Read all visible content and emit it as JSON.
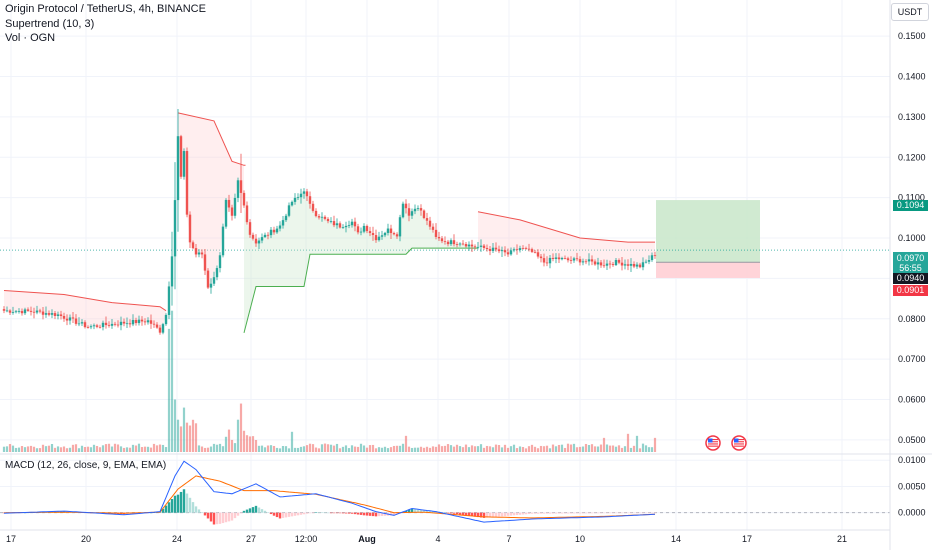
{
  "header": {
    "title": "Origin Protocol / TetherUS, 4h, BINANCE",
    "indicator_supertrend": "Supertrend (10, 3)",
    "indicator_volume": "Vol · OGN",
    "indicator_macd": "MACD (12, 26, close, 9, EMA, EMA)",
    "currency": "USDT"
  },
  "price_tags": {
    "target": "0.1094",
    "current": "0.0970",
    "countdown": "56:55",
    "entry": "0.0940",
    "stop": "0.0901"
  },
  "colors": {
    "up": "#26a69a",
    "down": "#ef5350",
    "supertrend_up": "#4caf50",
    "supertrend_down": "#ef5350",
    "macd_line": "#2962ff",
    "signal_line": "#ff6d00",
    "target_zone": "#c8e6c9",
    "stop_zone": "#ffcdd2"
  },
  "events": [
    "us-flag-icon",
    "us-flag-icon"
  ],
  "chart_data": {
    "type": "candlestick",
    "price_axis": {
      "ticks": [
        "0.1500",
        "0.1400",
        "0.1300",
        "0.1200",
        "0.1100",
        "0.1000",
        "0.0900",
        "0.0800",
        "0.0700",
        "0.0600",
        "0.0500"
      ],
      "range": [
        0.047,
        0.154
      ]
    },
    "time_axis": {
      "labels": [
        "17",
        "20",
        "24",
        "27",
        "12:00",
        "Aug",
        "4",
        "7",
        "10",
        "14",
        "17",
        "21"
      ]
    },
    "macd_axis": {
      "ticks": [
        "0.0100",
        "0.0050",
        "0.0000"
      ],
      "range": [
        -0.0033,
        0.0108
      ]
    },
    "anchors": [
      [
        0,
        0.082
      ],
      [
        10,
        0.0818
      ],
      [
        18,
        0.081
      ],
      [
        28,
        0.078
      ],
      [
        40,
        0.079
      ],
      [
        48,
        0.0795
      ],
      [
        52,
        0.077
      ],
      [
        54,
        0.081
      ],
      [
        56,
        0.096
      ],
      [
        57,
        0.1095
      ],
      [
        58,
        0.125
      ],
      [
        59,
        0.115
      ],
      [
        60,
        0.121
      ],
      [
        61,
        0.106
      ],
      [
        62,
        0.099
      ],
      [
        64,
        0.096
      ],
      [
        66,
        0.096
      ],
      [
        68,
        0.088
      ],
      [
        70,
        0.09
      ],
      [
        72,
        0.096
      ],
      [
        74,
        0.109
      ],
      [
        76,
        0.105
      ],
      [
        78,
        0.114
      ],
      [
        80,
        0.108
      ],
      [
        82,
        0.101
      ],
      [
        84,
        0.099
      ],
      [
        86,
        0.1
      ],
      [
        88,
        0.101
      ],
      [
        92,
        0.103
      ],
      [
        96,
        0.109
      ],
      [
        98,
        0.11
      ],
      [
        100,
        0.112
      ],
      [
        102,
        0.108
      ],
      [
        104,
        0.106
      ],
      [
        108,
        0.104
      ],
      [
        112,
        0.103
      ],
      [
        116,
        0.104
      ],
      [
        118,
        0.101
      ],
      [
        120,
        0.103
      ],
      [
        124,
        0.1
      ],
      [
        128,
        0.102
      ],
      [
        131,
        0.101
      ],
      [
        133,
        0.109
      ],
      [
        135,
        0.106
      ],
      [
        138,
        0.108
      ],
      [
        140,
        0.105
      ],
      [
        142,
        0.103
      ],
      [
        144,
        0.1
      ],
      [
        148,
        0.099
      ],
      [
        152,
        0.099
      ],
      [
        156,
        0.098
      ],
      [
        160,
        0.0975
      ],
      [
        164,
        0.097
      ],
      [
        168,
        0.096
      ],
      [
        172,
        0.0975
      ],
      [
        176,
        0.0965
      ],
      [
        180,
        0.094
      ],
      [
        184,
        0.095
      ],
      [
        188,
        0.0945
      ],
      [
        192,
        0.0945
      ],
      [
        196,
        0.094
      ],
      [
        200,
        0.0935
      ],
      [
        204,
        0.094
      ],
      [
        208,
        0.0935
      ],
      [
        212,
        0.093
      ],
      [
        214,
        0.094
      ],
      [
        217,
        0.096
      ]
    ],
    "volume": {
      "baseline": 0.0479,
      "spikes": [
        [
          55,
          0.0775
        ],
        [
          56,
          0.082
        ],
        [
          57,
          0.06
        ],
        [
          58,
          0.055
        ],
        [
          60,
          0.058
        ],
        [
          79,
          0.059
        ],
        [
          78,
          0.055
        ],
        [
          96,
          0.052
        ],
        [
          134,
          0.051
        ],
        [
          200,
          0.0505
        ],
        [
          208,
          0.0515
        ],
        [
          211,
          0.051
        ],
        [
          217,
          0.0505
        ]
      ]
    },
    "supertrend": {
      "down_1": [
        [
          0,
          0.087
        ],
        [
          20,
          0.086
        ],
        [
          36,
          0.084
        ],
        [
          52,
          0.083
        ],
        [
          54,
          0.082
        ]
      ],
      "down_2": [
        [
          58,
          0.131
        ],
        [
          70,
          0.129
        ],
        [
          76,
          0.119
        ],
        [
          80,
          0.118
        ],
        [
          80.5,
          0.118
        ]
      ],
      "up_1": [
        [
          80,
          0.0765
        ],
        [
          84,
          0.088
        ],
        [
          100,
          0.088
        ],
        [
          102,
          0.096
        ],
        [
          134,
          0.096
        ],
        [
          136,
          0.0975
        ],
        [
          158,
          0.0975
        ]
      ],
      "down_3": [
        [
          158,
          0.1065
        ],
        [
          172,
          0.1045
        ],
        [
          192,
          0.1
        ],
        [
          208,
          0.099
        ],
        [
          217,
          0.099
        ]
      ]
    },
    "position": {
      "target": 0.1094,
      "entry": 0.094,
      "stop": 0.0901,
      "x_start": 224,
      "x_end": 260
    },
    "macd": {
      "macd_line": [
        [
          0,
          -0.0001
        ],
        [
          20,
          0.0003
        ],
        [
          40,
          -0.0004
        ],
        [
          52,
          0.0002
        ],
        [
          57,
          0.007
        ],
        [
          60,
          0.0098
        ],
        [
          64,
          0.0082
        ],
        [
          70,
          0.004
        ],
        [
          76,
          0.0036
        ],
        [
          84,
          0.0055
        ],
        [
          92,
          0.003
        ],
        [
          104,
          0.0036
        ],
        [
          116,
          0.0018
        ],
        [
          124,
          0.0002
        ],
        [
          130,
          -0.0005
        ],
        [
          136,
          0.0008
        ],
        [
          144,
          0.0002
        ],
        [
          160,
          -0.0018
        ],
        [
          176,
          -0.0012
        ],
        [
          200,
          -0.0008
        ],
        [
          217,
          -0.0003
        ]
      ],
      "signal_line": [
        [
          0,
          0.0
        ],
        [
          20,
          0.0001
        ],
        [
          40,
          -0.0001
        ],
        [
          52,
          0.0001
        ],
        [
          58,
          0.0045
        ],
        [
          64,
          0.007
        ],
        [
          72,
          0.006
        ],
        [
          80,
          0.0042
        ],
        [
          90,
          0.0042
        ],
        [
          104,
          0.0035
        ],
        [
          120,
          0.0015
        ],
        [
          130,
          0.0
        ],
        [
          140,
          0.0001
        ],
        [
          160,
          -0.0008
        ],
        [
          176,
          -0.001
        ],
        [
          200,
          -0.0007
        ],
        [
          217,
          -0.0003
        ]
      ]
    }
  }
}
